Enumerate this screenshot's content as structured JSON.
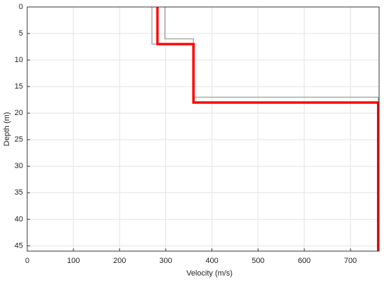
{
  "chart_data": {
    "type": "line",
    "x_label": "Velocity (m/s)",
    "y_label": "Depth (m)",
    "xlim": [
      0,
      762
    ],
    "ylim": [
      0,
      46
    ],
    "y_reversed": true,
    "xticks": [
      0,
      100,
      200,
      300,
      400,
      500,
      600,
      700
    ],
    "yticks": [
      0,
      5,
      10,
      15,
      20,
      25,
      30,
      35,
      40,
      45
    ],
    "grid": true,
    "series": [
      {
        "color": "#aaaaaa",
        "width": 1.5,
        "x": [
          270,
          270,
          282
        ],
        "y": [
          0,
          7,
          7
        ]
      },
      {
        "color": "#aaaaaa",
        "width": 1.5,
        "x": [
          298,
          298,
          360,
          360,
          760,
          760
        ],
        "y": [
          0,
          6,
          6,
          17,
          17,
          46
        ]
      },
      {
        "color": "#ff0000",
        "width": 3.5,
        "x": [
          282,
          282,
          360,
          360,
          760,
          760
        ],
        "y": [
          0,
          7,
          7,
          18,
          18,
          46
        ]
      }
    ]
  }
}
